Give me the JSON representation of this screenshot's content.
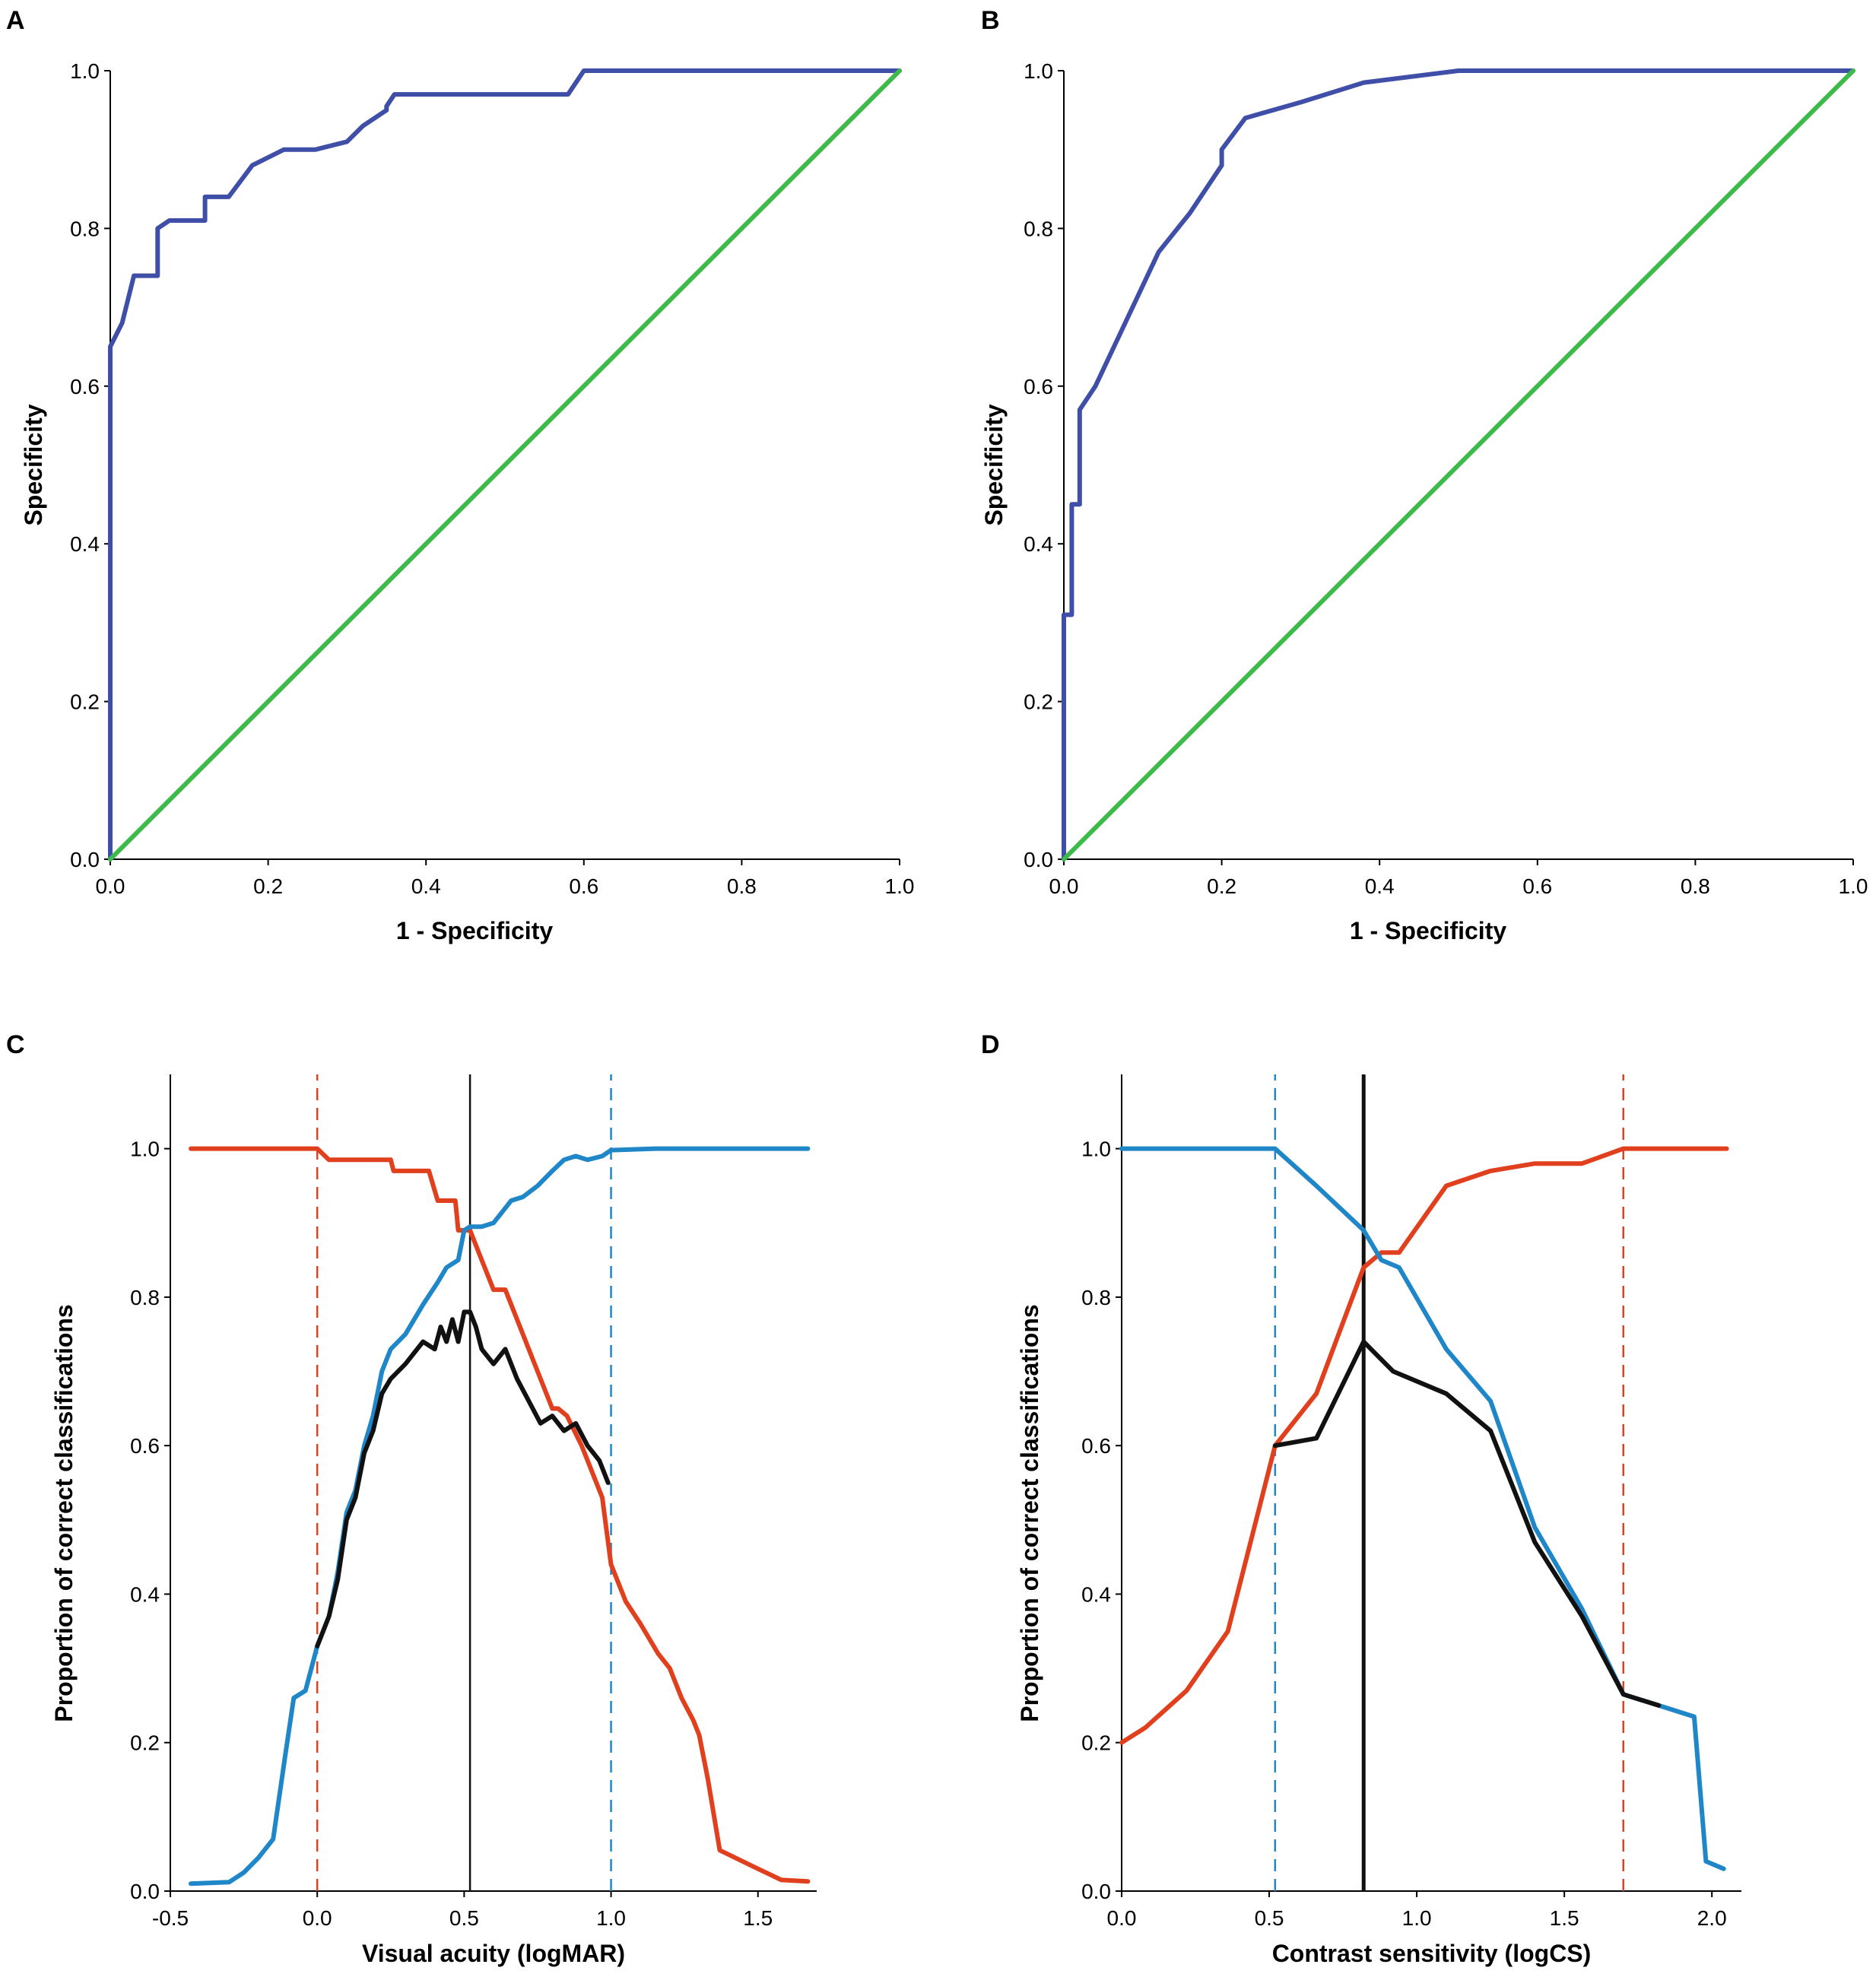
{
  "colors": {
    "roc": "#3f4fa8",
    "diagonal": "#3dba4a",
    "red": "#e1401e",
    "blue": "#1f86c8",
    "black": "#111111"
  },
  "chart_data": [
    {
      "panel": "A",
      "type": "line",
      "xlabel": "1 - Specificity",
      "ylabel": "Specificity",
      "xlim": [
        0,
        1
      ],
      "ylim": [
        0,
        1
      ],
      "xticks": [
        0.0,
        0.2,
        0.4,
        0.6,
        0.8,
        1.0
      ],
      "yticks": [
        0.0,
        0.2,
        0.4,
        0.6,
        0.8,
        1.0
      ],
      "xtick_labels": [
        "0.0",
        "0.2",
        "0.4",
        "0.6",
        "0.8",
        "1.0"
      ],
      "ytick_labels": [
        "0.0",
        "0.2",
        "0.4",
        "0.6",
        "0.8",
        "1.0"
      ],
      "series": [
        {
          "name": "ROC curve",
          "color": "#3f4fa8",
          "x": [
            0,
            0,
            0.015,
            0.03,
            0.03,
            0.06,
            0.06,
            0.075,
            0.12,
            0.12,
            0.15,
            0.165,
            0.18,
            0.22,
            0.26,
            0.3,
            0.32,
            0.35,
            0.35,
            0.36,
            0.36,
            0.58,
            0.6,
            1.0
          ],
          "y": [
            0,
            0.65,
            0.68,
            0.74,
            0.74,
            0.74,
            0.8,
            0.81,
            0.81,
            0.84,
            0.84,
            0.86,
            0.88,
            0.9,
            0.9,
            0.91,
            0.93,
            0.95,
            0.955,
            0.97,
            0.97,
            0.97,
            1.0,
            1.0
          ]
        },
        {
          "name": "Reference line",
          "color": "#3dba4a",
          "x": [
            0,
            1
          ],
          "y": [
            0,
            1
          ]
        }
      ]
    },
    {
      "panel": "B",
      "type": "line",
      "xlabel": "1 - Specificity",
      "ylabel": "Specificity",
      "xlim": [
        0,
        1
      ],
      "ylim": [
        0,
        1
      ],
      "xticks": [
        0.0,
        0.2,
        0.4,
        0.6,
        0.8,
        1.0
      ],
      "yticks": [
        0.0,
        0.2,
        0.4,
        0.6,
        0.8,
        1.0
      ],
      "xtick_labels": [
        "0.0",
        "0.2",
        "0.4",
        "0.6",
        "0.8",
        "1.0"
      ],
      "ytick_labels": [
        "0.0",
        "0.2",
        "0.4",
        "0.6",
        "0.8",
        "1.0"
      ],
      "series": [
        {
          "name": "ROC curve",
          "color": "#3f4fa8",
          "x": [
            0,
            0,
            0.01,
            0.01,
            0.02,
            0.02,
            0.04,
            0.12,
            0.16,
            0.2,
            0.2,
            0.23,
            0.3,
            0.38,
            0.5,
            1.0
          ],
          "y": [
            0,
            0.31,
            0.31,
            0.45,
            0.45,
            0.57,
            0.6,
            0.77,
            0.82,
            0.88,
            0.9,
            0.94,
            0.96,
            0.985,
            1.0,
            1.0
          ]
        },
        {
          "name": "Reference line",
          "color": "#3dba4a",
          "x": [
            0,
            1
          ],
          "y": [
            0,
            1
          ]
        }
      ]
    },
    {
      "panel": "C",
      "type": "line",
      "xlabel": "Visual acuity (logMAR)",
      "ylabel": "Proportion of correct classifications",
      "xlim": [
        -0.5,
        1.7
      ],
      "ylim": [
        0,
        1.1
      ],
      "xticks": [
        -0.5,
        0.0,
        0.5,
        1.0,
        1.5
      ],
      "yticks": [
        0.0,
        0.2,
        0.4,
        0.6,
        0.8,
        1.0
      ],
      "xtick_labels": [
        "-0.5",
        "0.0",
        "0.5",
        "1.0",
        "1.5"
      ],
      "ytick_labels": [
        "0.0",
        "0.2",
        "0.4",
        "0.6",
        "0.8",
        "1.0"
      ],
      "vlines": [
        {
          "x": 0.0,
          "color": "#e1401e",
          "style": "dashed"
        },
        {
          "x": 0.52,
          "color": "#111111",
          "style": "solid"
        },
        {
          "x": 1.0,
          "color": "#1f86c8",
          "style": "dashed"
        }
      ],
      "series": [
        {
          "name": "red",
          "color": "#e1401e",
          "x": [
            -0.43,
            -0.3,
            0.0,
            0.04,
            0.06,
            0.25,
            0.26,
            0.38,
            0.41,
            0.47,
            0.48,
            0.52,
            0.56,
            0.6,
            0.64,
            0.69,
            0.74,
            0.76,
            0.8,
            0.82,
            0.85,
            0.9,
            0.97,
            0.98,
            1.0,
            1.05,
            1.1,
            1.16,
            1.2,
            1.24,
            1.28,
            1.3,
            1.33,
            1.37,
            1.5,
            1.58,
            1.67
          ],
          "y": [
            1.0,
            1.0,
            1.0,
            0.985,
            0.985,
            0.985,
            0.97,
            0.97,
            0.93,
            0.93,
            0.89,
            0.89,
            0.85,
            0.81,
            0.81,
            0.76,
            0.71,
            0.69,
            0.65,
            0.65,
            0.64,
            0.6,
            0.53,
            0.5,
            0.44,
            0.39,
            0.36,
            0.32,
            0.3,
            0.26,
            0.23,
            0.21,
            0.15,
            0.055,
            0.03,
            0.015,
            0.013
          ]
        },
        {
          "name": "blue",
          "color": "#1f86c8",
          "x": [
            -0.43,
            -0.3,
            -0.25,
            -0.2,
            -0.15,
            -0.11,
            -0.08,
            -0.04,
            0.0,
            0.04,
            0.07,
            0.1,
            0.13,
            0.16,
            0.19,
            0.22,
            0.25,
            0.3,
            0.36,
            0.41,
            0.44,
            0.48,
            0.5,
            0.52,
            0.56,
            0.6,
            0.66,
            0.7,
            0.75,
            0.8,
            0.84,
            0.88,
            0.92,
            0.97,
            1.0,
            1.15,
            1.67
          ],
          "y": [
            0.01,
            0.012,
            0.025,
            0.045,
            0.07,
            0.18,
            0.26,
            0.27,
            0.33,
            0.37,
            0.43,
            0.51,
            0.54,
            0.6,
            0.64,
            0.7,
            0.73,
            0.75,
            0.79,
            0.82,
            0.84,
            0.85,
            0.89,
            0.895,
            0.895,
            0.9,
            0.93,
            0.935,
            0.95,
            0.97,
            0.985,
            0.99,
            0.985,
            0.99,
            0.998,
            1.0,
            1.0
          ]
        },
        {
          "name": "black",
          "color": "#111111",
          "x": [
            0.0,
            0.04,
            0.07,
            0.1,
            0.13,
            0.16,
            0.19,
            0.22,
            0.25,
            0.3,
            0.36,
            0.4,
            0.42,
            0.44,
            0.46,
            0.48,
            0.5,
            0.52,
            0.54,
            0.56,
            0.6,
            0.64,
            0.68,
            0.72,
            0.76,
            0.8,
            0.84,
            0.88,
            0.92,
            0.96,
            0.99
          ],
          "y": [
            0.33,
            0.37,
            0.42,
            0.5,
            0.53,
            0.59,
            0.62,
            0.67,
            0.69,
            0.71,
            0.74,
            0.73,
            0.76,
            0.74,
            0.77,
            0.74,
            0.78,
            0.78,
            0.76,
            0.73,
            0.71,
            0.73,
            0.69,
            0.66,
            0.63,
            0.64,
            0.62,
            0.63,
            0.6,
            0.58,
            0.55
          ]
        }
      ]
    },
    {
      "panel": "D",
      "type": "line",
      "xlabel": "Contrast sensitivity (logCS)",
      "ylabel": "Proportion of correct classifications",
      "xlim": [
        0,
        2.1
      ],
      "ylim": [
        0,
        1.1
      ],
      "xticks": [
        0.0,
        0.5,
        1.0,
        1.5,
        2.0
      ],
      "yticks": [
        0.0,
        0.2,
        0.4,
        0.6,
        0.8,
        1.0
      ],
      "xtick_labels": [
        "0.0",
        "0.5",
        "1.0",
        "1.5",
        "2.0"
      ],
      "ytick_labels": [
        "0.0",
        "0.2",
        "0.4",
        "0.6",
        "0.8",
        "1.0"
      ],
      "vlines": [
        {
          "x": 0.52,
          "color": "#1f86c8",
          "style": "dashed"
        },
        {
          "x": 0.82,
          "color": "#111111",
          "style": "solid"
        },
        {
          "x": 1.7,
          "color": "#e1401e",
          "style": "dashed"
        }
      ],
      "series": [
        {
          "name": "red",
          "color": "#e1401e",
          "x": [
            0.0,
            0.08,
            0.22,
            0.36,
            0.52,
            0.66,
            0.82,
            0.88,
            0.94,
            1.1,
            1.25,
            1.4,
            1.56,
            1.7,
            1.82,
            2.05
          ],
          "y": [
            0.2,
            0.22,
            0.27,
            0.35,
            0.6,
            0.67,
            0.84,
            0.86,
            0.86,
            0.95,
            0.97,
            0.98,
            0.98,
            1.0,
            1.0,
            1.0
          ]
        },
        {
          "name": "blue",
          "color": "#1f86c8",
          "x": [
            0.0,
            0.52,
            0.66,
            0.82,
            0.88,
            0.94,
            1.1,
            1.25,
            1.4,
            1.56,
            1.7,
            1.82,
            1.94,
            1.98,
            2.04
          ],
          "y": [
            1.0,
            1.0,
            0.95,
            0.89,
            0.85,
            0.84,
            0.73,
            0.66,
            0.49,
            0.38,
            0.265,
            0.25,
            0.235,
            0.04,
            0.03
          ]
        },
        {
          "name": "black",
          "color": "#111111",
          "x": [
            0.52,
            0.66,
            0.82,
            0.92,
            1.1,
            1.25,
            1.4,
            1.56,
            1.7,
            1.82
          ],
          "y": [
            0.6,
            0.61,
            0.74,
            0.7,
            0.67,
            0.62,
            0.47,
            0.37,
            0.265,
            0.25
          ]
        }
      ]
    }
  ]
}
